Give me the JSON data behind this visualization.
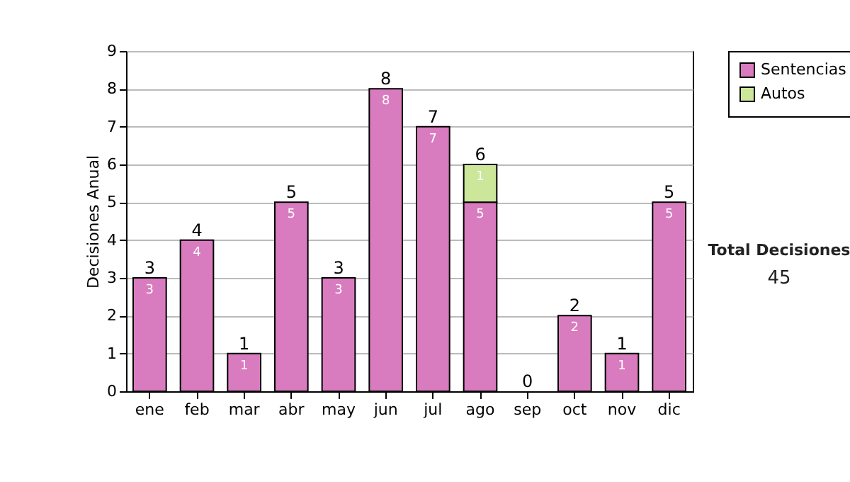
{
  "chart_data": {
    "type": "bar",
    "stacked": true,
    "ylabel": "Decisiones Anual",
    "categories": [
      "ene",
      "feb",
      "mar",
      "abr",
      "may",
      "jun",
      "jul",
      "ago",
      "sep",
      "oct",
      "nov",
      "dic"
    ],
    "series": [
      {
        "name": "Sentencias",
        "color": "#d97bbf",
        "values": [
          3,
          4,
          1,
          5,
          3,
          8,
          7,
          5,
          0,
          2,
          1,
          5
        ],
        "value_labels": [
          "3",
          "4",
          "1",
          "5",
          "3",
          "8",
          "7",
          "5",
          null,
          "2",
          "1",
          "5"
        ]
      },
      {
        "name": "Autos",
        "color": "#cce69a",
        "values": [
          0,
          0,
          0,
          0,
          0,
          0,
          0,
          1,
          0,
          0,
          0,
          0
        ],
        "value_labels": [
          null,
          null,
          null,
          null,
          null,
          null,
          null,
          "1",
          null,
          null,
          null,
          null
        ]
      }
    ],
    "totals": [
      "3",
      "4",
      "1",
      "5",
      "3",
      "8",
      "7",
      "6",
      "0",
      "2",
      "1",
      "5"
    ],
    "ylim": [
      0,
      9
    ],
    "yticks": [
      0,
      1,
      2,
      3,
      4,
      5,
      6,
      7,
      8,
      9
    ],
    "grid": "y",
    "legend": "right",
    "annotations": [
      "Total Decisiones",
      "45"
    ]
  }
}
